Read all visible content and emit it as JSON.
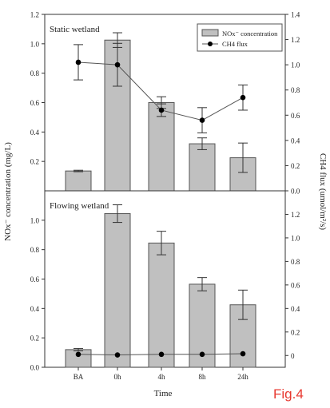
{
  "figure_label": "Fig.4",
  "colors": {
    "bar_fill": "#c0c0c0",
    "bar_stroke": "#555555",
    "line": "#555555",
    "marker": "#000000",
    "fig_label": "#e8382f"
  },
  "chart_data": [
    {
      "panel": "top",
      "type": "bar",
      "annotation": "Static wetland",
      "categories": [
        "BA",
        "0h",
        "4h",
        "8h",
        "24h"
      ],
      "xlabel": "",
      "ylabel": "NOx⁻ concentration (mg/L)",
      "ylim": [
        0.0,
        1.2
      ],
      "yticks": [
        "0.2",
        "0.4",
        "0.6",
        "0.8",
        "1.0",
        "1.2"
      ],
      "y2label": "CH4 flux (umol/m²/s)",
      "y2lim": [
        0.0,
        1.4
      ],
      "y2ticks": [
        "0.0",
        "0.2",
        "0.4",
        "0.6",
        "0.8",
        "1.0",
        "1.2",
        "1.4"
      ],
      "legend": [
        {
          "label": "NOx⁻ concentration",
          "kind": "bar"
        },
        {
          "label": "CH4 flux",
          "kind": "line"
        }
      ],
      "legend_position": "top-right",
      "series": [
        {
          "name": "NOx⁻ concentration",
          "kind": "bar",
          "values": [
            0.135,
            1.025,
            0.6,
            0.32,
            0.225
          ],
          "errors": [
            0.005,
            0.05,
            0.04,
            0.04,
            0.1
          ]
        },
        {
          "name": "CH4 flux",
          "kind": "line",
          "axis": "right",
          "values": [
            1.02,
            1.0,
            0.64,
            0.56,
            0.74
          ],
          "errors": [
            0.14,
            0.17,
            0.05,
            0.1,
            0.1
          ]
        }
      ]
    },
    {
      "panel": "bottom",
      "type": "bar",
      "annotation": "Flowing wetland",
      "categories": [
        "BA",
        "0h",
        "4h",
        "8h",
        "24h"
      ],
      "xlabel": "Time",
      "ylabel": "NOx⁻ concentration (mg/L)",
      "ylim": [
        0.0,
        1.2
      ],
      "yticks": [
        "0.0",
        "0.2",
        "0.4",
        "0.6",
        "0.8",
        "1.0"
      ],
      "y2label": "CH4 flux (umol/m²/s)",
      "y2lim": [
        -0.1,
        1.4
      ],
      "y2ticks": [
        "0",
        "0.2",
        "0.4",
        "0.6",
        "0.8",
        "1.0",
        "1.2"
      ],
      "series": [
        {
          "name": "NOx⁻ concentration",
          "kind": "bar",
          "values": [
            0.12,
            1.045,
            0.845,
            0.565,
            0.425
          ],
          "errors": [
            0.008,
            0.06,
            0.08,
            0.045,
            0.1
          ]
        },
        {
          "name": "CH4 flux",
          "kind": "line",
          "axis": "right",
          "values": [
            0.01,
            0.005,
            0.01,
            0.01,
            0.015
          ],
          "errors": [
            0,
            0,
            0,
            0,
            0
          ]
        }
      ]
    }
  ]
}
